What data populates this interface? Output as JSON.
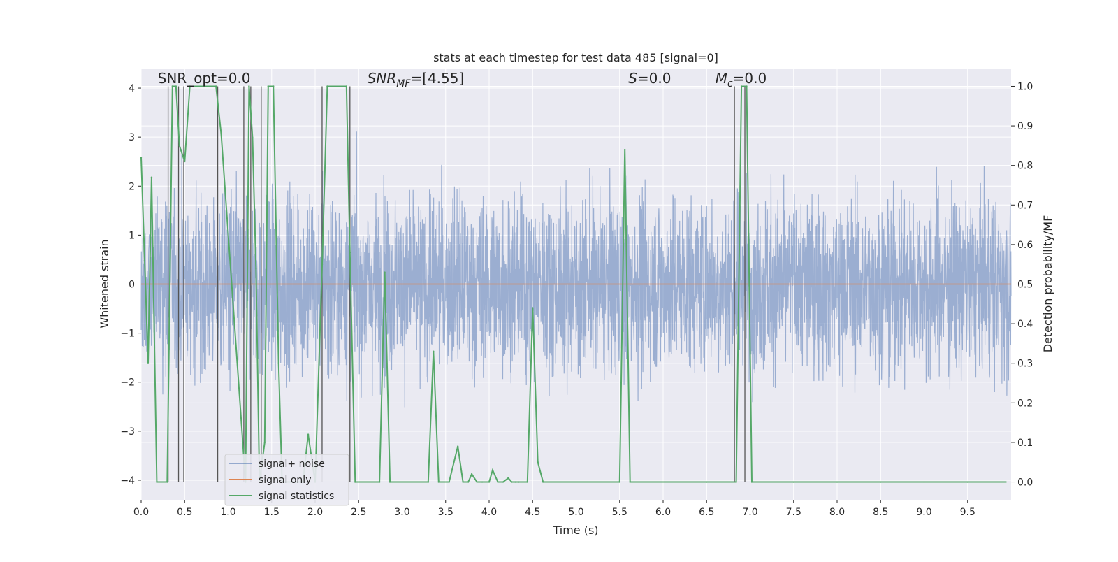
{
  "chart_data": {
    "type": "line",
    "title": "stats at each timestep for test data 485 [signal=0]",
    "xlabel": "Time (s)",
    "ylabel_left": "Whitened strain",
    "ylabel_right": "Detection probability/MF",
    "xlim": [
      0.0,
      10.0
    ],
    "ylim_left": [
      -4.4,
      4.4
    ],
    "ylim_right": [
      -0.045,
      1.045
    ],
    "x_ticks": [
      "0.0",
      "0.5",
      "1.0",
      "1.5",
      "2.0",
      "2.5",
      "3.0",
      "3.5",
      "4.0",
      "4.5",
      "5.0",
      "5.5",
      "6.0",
      "6.5",
      "7.0",
      "7.5",
      "8.0",
      "8.5",
      "9.0",
      "9.5"
    ],
    "y_left_ticks": [
      "4",
      "3",
      "2",
      "1",
      "0",
      "−1",
      "−2",
      "−3",
      "−4"
    ],
    "y_right_ticks": [
      "1.0",
      "0.9",
      "0.8",
      "0.7",
      "0.6",
      "0.5",
      "0.4",
      "0.3",
      "0.2",
      "0.1",
      "0.0"
    ],
    "annotations": [
      {
        "text": "SNR_opt=0.0",
        "x": 0.19,
        "y": 4.2
      },
      {
        "text": "SNR_MF=[4.55]",
        "x": 2.6,
        "y": 4.2
      },
      {
        "text": "S=0.0",
        "x": 5.6,
        "y": 4.2
      },
      {
        "text": "M_c=0.0",
        "x": 6.6,
        "y": 4.2
      }
    ],
    "grid": true,
    "legend_position": "lower-left",
    "series": [
      {
        "name": "signal+ noise",
        "color": "#4c72b0",
        "axis": "left",
        "kind": "noise",
        "amplitude_range": [
          -3.7,
          4.0
        ]
      },
      {
        "name": "signal only",
        "color": "#dd8452",
        "axis": "left",
        "value": 0.0
      },
      {
        "name": "signal statistics",
        "color": "#55a868",
        "axis": "right",
        "x": [
          0.0,
          0.04,
          0.08,
          0.12,
          0.18,
          0.3,
          0.36,
          0.4,
          0.44,
          0.5,
          0.56,
          0.86,
          0.92,
          1.2,
          1.24,
          1.28,
          1.32,
          1.36,
          1.42,
          1.46,
          1.52,
          1.58,
          1.62,
          1.68,
          1.74,
          1.8,
          1.86,
          1.92,
          2.0,
          2.08,
          2.14,
          2.36,
          2.4,
          2.46,
          2.74,
          2.8,
          2.86,
          3.3,
          3.36,
          3.42,
          3.54,
          3.64,
          3.7,
          3.76,
          3.8,
          3.86,
          3.92,
          4.0,
          4.04,
          4.1,
          4.16,
          4.22,
          4.26,
          4.3,
          4.34,
          4.44,
          4.5,
          4.56,
          4.62,
          5.5,
          5.56,
          5.62,
          6.5,
          6.84,
          6.9,
          6.96,
          7.02,
          7.5,
          8.0,
          8.5,
          9.0,
          9.5,
          9.94
        ],
        "y": [
          0.82,
          0.56,
          0.3,
          0.77,
          0.0,
          0.0,
          1.0,
          1.0,
          0.85,
          0.81,
          1.0,
          1.0,
          0.88,
          0.0,
          1.0,
          0.87,
          0.54,
          0.0,
          0.1,
          1.0,
          1.0,
          0.3,
          0.0,
          0.0,
          0.0,
          0.0,
          0.0,
          0.12,
          0.0,
          0.55,
          1.0,
          1.0,
          0.58,
          0.0,
          0.0,
          0.53,
          0.0,
          0.0,
          0.33,
          0.0,
          0.0,
          0.09,
          0.0,
          0.0,
          0.02,
          0.0,
          0.0,
          0.0,
          0.03,
          0.0,
          0.0,
          0.01,
          0.0,
          0.0,
          0.0,
          0.0,
          0.44,
          0.05,
          0.0,
          0.0,
          0.84,
          0.0,
          0.0,
          0.0,
          1.0,
          1.0,
          0.0,
          0.0,
          0.0,
          0.0,
          0.0,
          0.0,
          0.0
        ]
      }
    ],
    "vertical_markers": [
      0.31,
      0.43,
      0.49,
      0.88,
      1.18,
      1.26,
      1.38,
      2.08,
      2.4,
      6.82,
      6.94
    ]
  }
}
